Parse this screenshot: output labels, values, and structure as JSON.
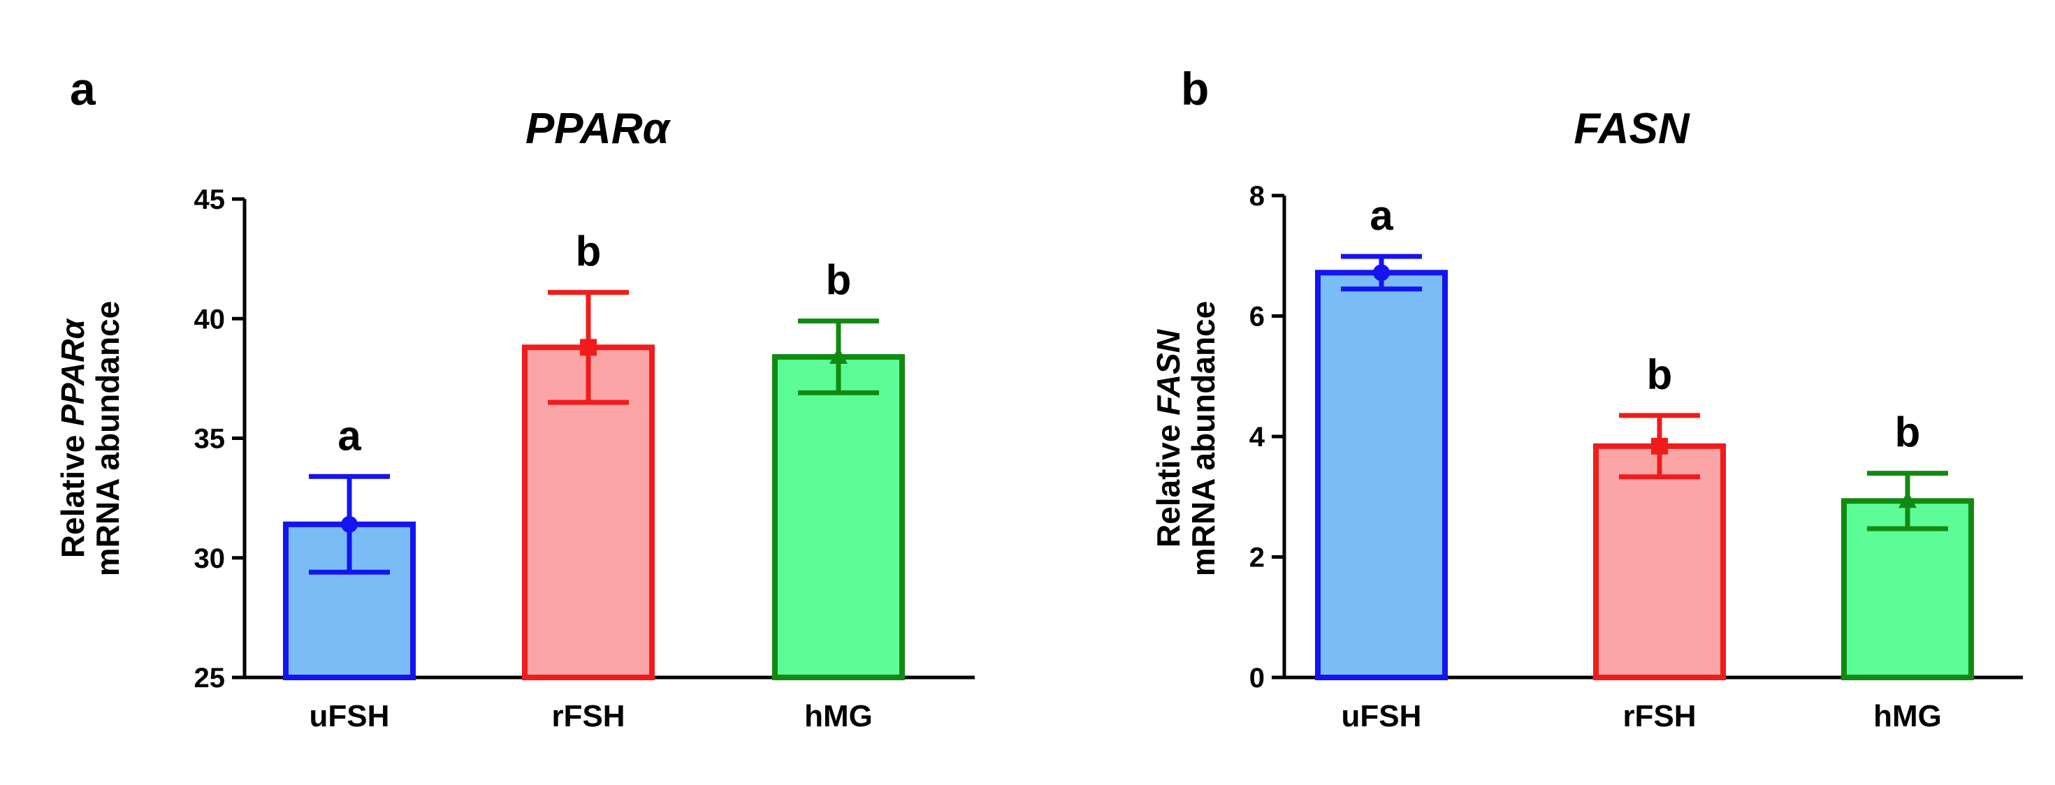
{
  "chart_data": [
    {
      "panel": "a",
      "type": "bar",
      "title": "PPARα",
      "ylabel_prefix": "Relative ",
      "ylabel_gene": "PPARα",
      "ylabel_line2": "mRNA abundance",
      "categories": [
        "uFSH",
        "rFSH",
        "hMG"
      ],
      "values": [
        31.4,
        38.8,
        38.4
      ],
      "errors": [
        2.0,
        2.3,
        1.5
      ],
      "significance": [
        "a",
        "b",
        "b"
      ],
      "ylim": [
        25,
        45
      ],
      "yticks": [
        25,
        30,
        35,
        40,
        45
      ],
      "ytick_labels": [
        "25",
        "30",
        "35",
        "40",
        "45"
      ]
    },
    {
      "panel": "b",
      "type": "bar",
      "title": "FASN",
      "ylabel_prefix": "Relative ",
      "ylabel_gene": "FASN",
      "ylabel_line2": "mRNA abundance",
      "categories": [
        "uFSH",
        "rFSH",
        "hMG"
      ],
      "values": [
        6.72,
        3.84,
        2.93
      ],
      "errors": [
        0.27,
        0.51,
        0.46
      ],
      "significance": [
        "a",
        "b",
        "b"
      ],
      "ylim": [
        0,
        8
      ],
      "yticks": [
        0,
        2,
        4,
        6,
        8
      ],
      "ytick_labels": [
        "0",
        "2",
        "4",
        "6",
        "8"
      ]
    }
  ],
  "colors": {
    "series_fill": [
      "#7abdf6",
      "#fca5a6",
      "#5cfc96"
    ],
    "series_stroke": [
      "#1414f0",
      "#f01c1c",
      "#128a12"
    ],
    "axis": "#000000"
  },
  "markers": [
    "circle-marker",
    "square-marker",
    "triangle-marker"
  ]
}
